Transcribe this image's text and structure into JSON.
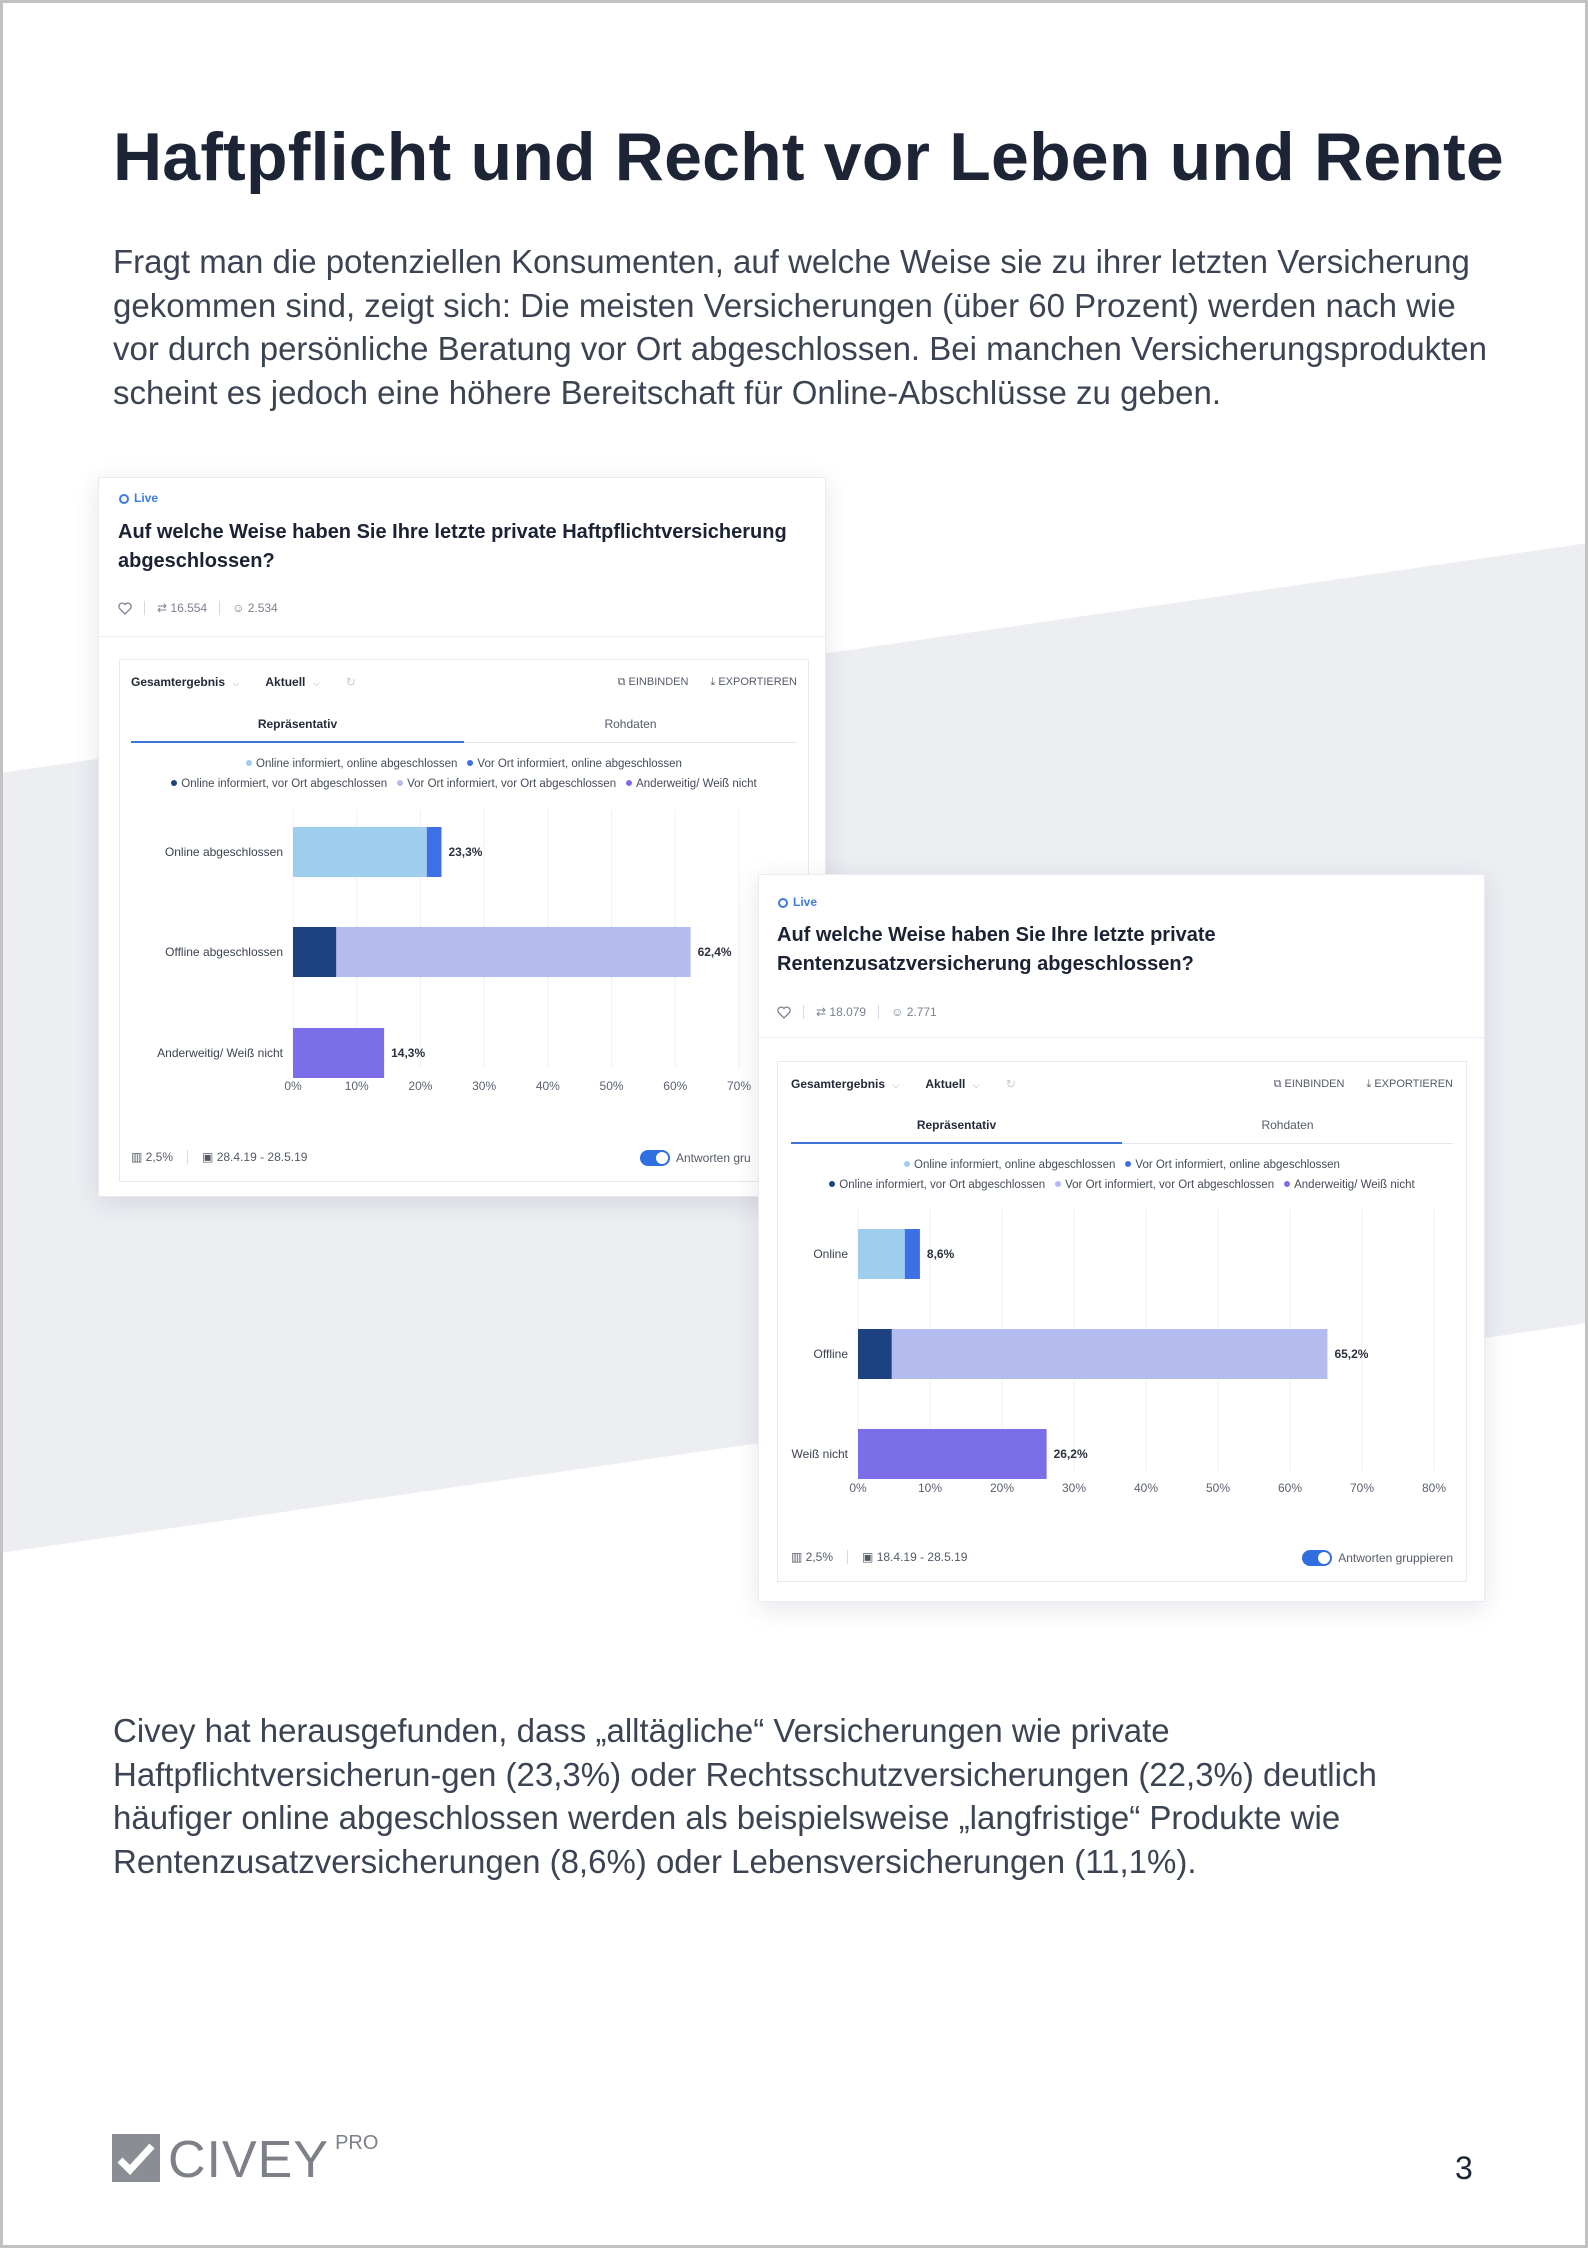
{
  "heading": "Haftpflicht und Recht vor Leben und Rente",
  "intro": "Fragt man die potenziellen Konsumenten, auf welche Weise sie zu ihrer letzten Versicherung gekommen sind, zeigt sich: Die meisten Versicherungen (über 60 Prozent) werden nach wie vor durch persönliche Beratung vor Ort abgeschlossen. Bei manchen Versicherungsprodukten scheint es jedoch eine höhere Bereitschaft für Online-Abschlüsse zu geben.",
  "outro": "Civey hat herausgefunden, dass „alltägliche“ Versicherungen wie private Haftpflichtversicherun-gen (23,3%) oder Rechtsschutzversicherungen (22,3%) deutlich häufiger online abgeschlossen werden als beispielsweise „langfristige“ Produkte wie Rentenzusatzversicherungen (8,6%) oder Lebensversicherungen (11,1%).",
  "colors": {
    "online_online": "#9fcdee",
    "ort_online": "#3d6fe6",
    "online_ort": "#1c4282",
    "ort_ort": "#b4bbee",
    "anderweitig": "#7c6ee8"
  },
  "legend_labels": {
    "online_online": "Online informiert, online abgeschlossen",
    "ort_online": "Vor Ort informiert, online abgeschlossen",
    "online_ort": "Online informiert, vor Ort abgeschlossen",
    "ort_ort": "Vor Ort informiert, vor Ort abgeschlossen",
    "anderweitig": "Anderweitig/ Weiß nicht"
  },
  "card1": {
    "live": "Live",
    "title": "Auf welche Weise haben Sie Ihre letzte private Haftpflichtversicherung abgeschlossen?",
    "shares": "16.554",
    "participants": "2.534",
    "filter": "Gesamtergebnis",
    "period": "Aktuell",
    "embed": "EINBINDEN",
    "export": "EXPORTIEREN",
    "tab_active": "Repräsentativ",
    "tab_other": "Rohdaten",
    "error": "2,5%",
    "dates": "28.4.19 - 28.5.19",
    "group_toggle": "Antworten gru"
  },
  "card2": {
    "live": "Live",
    "title": "Auf welche Weise haben Sie Ihre letzte private Rentenzusatzversicherung abgeschlossen?",
    "shares": "18.079",
    "participants": "2.771",
    "filter": "Gesamtergebnis",
    "period": "Aktuell",
    "embed": "EINBINDEN",
    "export": "EXPORTIEREN",
    "tab_active": "Repräsentativ",
    "tab_other": "Rohdaten",
    "error": "2,5%",
    "dates": "18.4.19 - 28.5.19",
    "group_toggle": "Antworten gruppieren"
  },
  "chart_data": [
    {
      "type": "bar",
      "orientation": "horizontal",
      "stacked": true,
      "categories": [
        "Online abgeschlossen",
        "Offline abgeschlossen",
        "Anderweitig/ Weiß nicht"
      ],
      "series": [
        {
          "name": "Online informiert, online abgeschlossen",
          "key": "online_online",
          "values": [
            21.0,
            0,
            0
          ]
        },
        {
          "name": "Vor Ort informiert, online abgeschlossen",
          "key": "ort_online",
          "values": [
            2.3,
            0,
            0
          ]
        },
        {
          "name": "Online informiert, vor Ort abgeschlossen",
          "key": "online_ort",
          "values": [
            0,
            6.8,
            0
          ]
        },
        {
          "name": "Vor Ort informiert, vor Ort abgeschlossen",
          "key": "ort_ort",
          "values": [
            0,
            55.6,
            0
          ]
        },
        {
          "name": "Anderweitig/ Weiß nicht",
          "key": "anderweitig",
          "values": [
            0,
            0,
            14.3
          ]
        }
      ],
      "totals": [
        "23,3%",
        "62,4%",
        "14,3%"
      ],
      "xticks": [
        "0%",
        "10%",
        "20%",
        "30%",
        "40%",
        "50%",
        "60%",
        "70%"
      ],
      "xlim": [
        0,
        70
      ],
      "grid": true,
      "legend": "top"
    },
    {
      "type": "bar",
      "orientation": "horizontal",
      "stacked": true,
      "categories": [
        "Online",
        "Offline",
        "Weiß nicht"
      ],
      "series": [
        {
          "name": "Online informiert, online abgeschlossen",
          "key": "online_online",
          "values": [
            6.5,
            0,
            0
          ]
        },
        {
          "name": "Vor Ort informiert, online abgeschlossen",
          "key": "ort_online",
          "values": [
            2.1,
            0,
            0
          ]
        },
        {
          "name": "Online informiert, vor Ort abgeschlossen",
          "key": "online_ort",
          "values": [
            0,
            4.7,
            0
          ]
        },
        {
          "name": "Vor Ort informiert, vor Ort abgeschlossen",
          "key": "ort_ort",
          "values": [
            0,
            60.5,
            0
          ]
        },
        {
          "name": "Anderweitig/ Weiß nicht",
          "key": "anderweitig",
          "values": [
            0,
            0,
            26.2
          ]
        }
      ],
      "totals": [
        "8,6%",
        "65,2%",
        "26,2%"
      ],
      "xticks": [
        "0%",
        "10%",
        "20%",
        "30%",
        "40%",
        "50%",
        "60%",
        "70%",
        "80%"
      ],
      "xlim": [
        0,
        80
      ],
      "grid": true,
      "legend": "top"
    }
  ],
  "logo_text": "CIVEY",
  "logo_suffix": "PRO",
  "page_number": "3"
}
